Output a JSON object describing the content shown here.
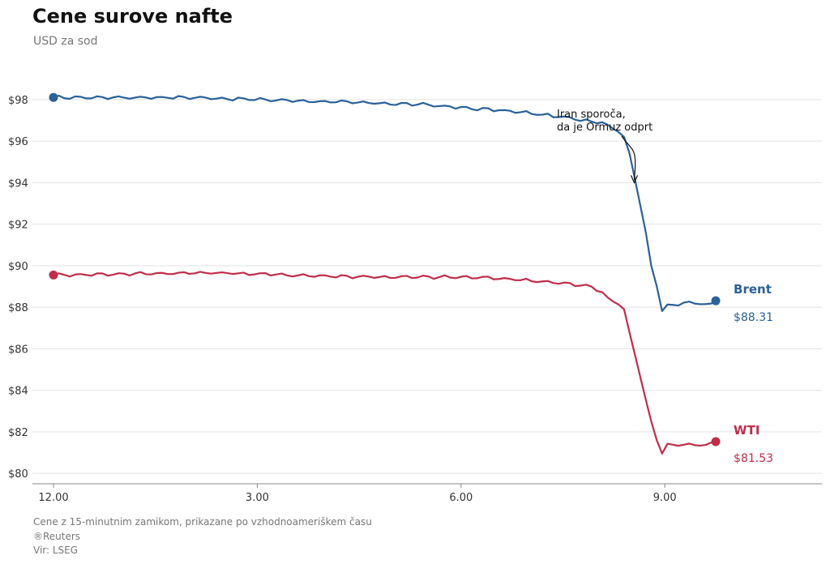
{
  "chart_data": {
    "type": "line",
    "title": "Cene surove nafte",
    "subtitle": "USD za sod",
    "x_range": [
      0,
      11.75
    ],
    "x_ticks": [
      {
        "value": 0,
        "label": "12.00"
      },
      {
        "value": 3,
        "label": "3.00"
      },
      {
        "value": 6,
        "label": "6.00"
      },
      {
        "value": 9,
        "label": "9.00"
      }
    ],
    "ylim": [
      79.5,
      98.5
    ],
    "y_ticks": [
      {
        "value": 80,
        "label": "$80"
      },
      {
        "value": 82,
        "label": "$82"
      },
      {
        "value": 84,
        "label": "$84"
      },
      {
        "value": 86,
        "label": "$86"
      },
      {
        "value": 88,
        "label": "$88"
      },
      {
        "value": 90,
        "label": "$90"
      },
      {
        "value": 92,
        "label": "$92"
      },
      {
        "value": 94,
        "label": "$94"
      },
      {
        "value": 96,
        "label": "$96"
      },
      {
        "value": 98,
        "label": "$98"
      }
    ],
    "grid": true,
    "series": [
      {
        "name": "Brent",
        "color": "#2a6199",
        "end_label": "$88.31",
        "points": [
          [
            0,
            98.1
          ],
          [
            1,
            98.1
          ],
          [
            2,
            98.1
          ],
          [
            3,
            98.0
          ],
          [
            4,
            97.9
          ],
          [
            5,
            97.8
          ],
          [
            5.5,
            97.75
          ],
          [
            6,
            97.6
          ],
          [
            6.5,
            97.5
          ],
          [
            7,
            97.35
          ],
          [
            7.5,
            97.15
          ],
          [
            7.8,
            97.0
          ],
          [
            8.1,
            96.9
          ],
          [
            8.2,
            96.7
          ],
          [
            8.3,
            96.5
          ],
          [
            8.4,
            96.2
          ],
          [
            8.5,
            95.2
          ],
          [
            8.6,
            93.5
          ],
          [
            8.7,
            92.0
          ],
          [
            8.8,
            90.0
          ],
          [
            8.9,
            88.8
          ],
          [
            8.95,
            87.75
          ],
          [
            9.0,
            88.1
          ],
          [
            9.1,
            88.1
          ],
          [
            9.3,
            88.2
          ],
          [
            9.5,
            88.2
          ],
          [
            9.65,
            88.1
          ],
          [
            9.75,
            88.31
          ]
        ]
      },
      {
        "name": "WTI",
        "color": "#c02d49",
        "end_label": "$81.53",
        "points": [
          [
            0,
            89.55
          ],
          [
            1,
            89.6
          ],
          [
            2,
            89.65
          ],
          [
            2.5,
            89.65
          ],
          [
            3,
            89.6
          ],
          [
            4,
            89.5
          ],
          [
            5,
            89.45
          ],
          [
            6,
            89.45
          ],
          [
            6.5,
            89.4
          ],
          [
            7,
            89.3
          ],
          [
            7.5,
            89.15
          ],
          [
            7.9,
            89.0
          ],
          [
            8.1,
            88.7
          ],
          [
            8.2,
            88.3
          ],
          [
            8.3,
            88.2
          ],
          [
            8.4,
            87.9
          ],
          [
            8.5,
            86.5
          ],
          [
            8.6,
            85.2
          ],
          [
            8.7,
            83.8
          ],
          [
            8.8,
            82.5
          ],
          [
            8.9,
            81.4
          ],
          [
            8.95,
            80.85
          ],
          [
            9.0,
            81.4
          ],
          [
            9.1,
            81.35
          ],
          [
            9.3,
            81.4
          ],
          [
            9.5,
            81.4
          ],
          [
            9.65,
            81.35
          ],
          [
            9.75,
            81.53
          ]
        ]
      }
    ],
    "annotation": {
      "lines": [
        "Iran sporoča,",
        "da je Ormuz odprt"
      ],
      "x": 8.55,
      "y": 94.0
    },
    "footer": [
      "Cene z 15-minutnim zamikom, prikazane po vzhodnoameriškem času",
      "®Reuters",
      "Vir: LSEG"
    ]
  }
}
